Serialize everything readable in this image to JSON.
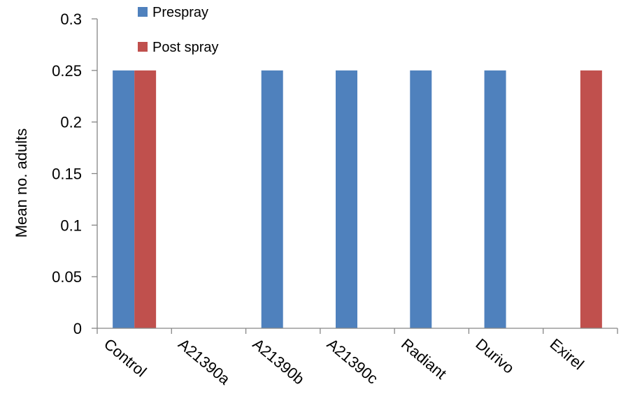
{
  "chart_data": {
    "type": "bar",
    "title": "",
    "xlabel": "",
    "ylabel": "Mean no. adults",
    "ylim": [
      0,
      0.3
    ],
    "yticks": [
      "0",
      "0.05",
      "0.1",
      "0.15",
      "0.2",
      "0.25",
      "0.3"
    ],
    "categories": [
      "Control",
      "A21390a",
      "A21390b",
      "A21390c",
      "Radiant",
      "Durivo",
      "Exirel"
    ],
    "series": [
      {
        "name": "Prespray",
        "color": "#4F81BD",
        "values": [
          0.25,
          0,
          0.25,
          0.25,
          0.25,
          0.25,
          0
        ]
      },
      {
        "name": "Post spray",
        "color": "#C0504D",
        "values": [
          0.25,
          0,
          0,
          0,
          0,
          0,
          0.25
        ]
      }
    ],
    "legend_position": "top-left",
    "grid": false
  }
}
